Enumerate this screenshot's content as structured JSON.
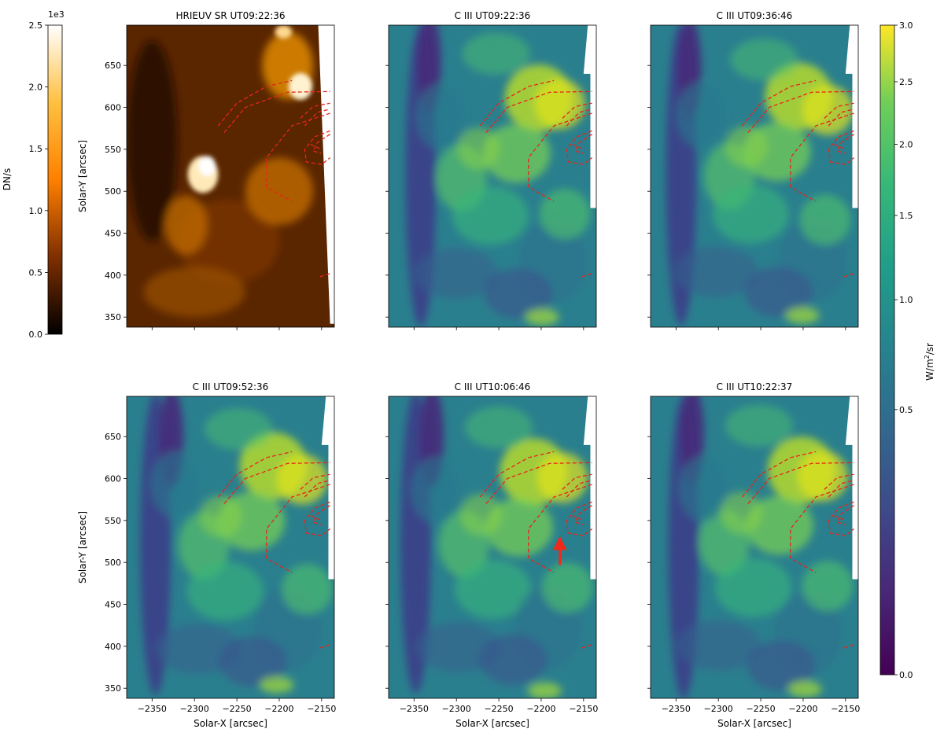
{
  "chart_data": {
    "type": "heatmap",
    "panels": [
      {
        "title": "HRIEUV SR UT09:22:36",
        "colormap": "afmhot",
        "ylabel": "Solar-Y [arcsec]",
        "xlabel": ""
      },
      {
        "title": "C III UT09:22:36",
        "colormap": "viridis",
        "ylabel": "",
        "xlabel": ""
      },
      {
        "title": "C III UT09:36:46",
        "colormap": "viridis",
        "ylabel": "",
        "xlabel": ""
      },
      {
        "title": "C III UT09:52:36",
        "colormap": "viridis",
        "ylabel": "Solar-Y [arcsec]",
        "xlabel": "Solar-X [arcsec]"
      },
      {
        "title": "C III UT10:06:46",
        "colormap": "viridis",
        "ylabel": "",
        "xlabel": "Solar-X [arcsec]",
        "annotation": "red arrow"
      },
      {
        "title": "C III UT10:22:37",
        "colormap": "viridis",
        "ylabel": "",
        "xlabel": "Solar-X [arcsec]"
      }
    ],
    "xlim": [
      -2380,
      -2135
    ],
    "ylim": [
      338,
      698
    ],
    "x_ticks": [
      -2350,
      -2300,
      -2250,
      -2200,
      -2150
    ],
    "x_tick_labels": [
      "−2350",
      "−2300",
      "−2250",
      "−2200",
      "−2150"
    ],
    "y_ticks": [
      350,
      400,
      450,
      500,
      550,
      600,
      650
    ],
    "y_tick_labels": [
      "350",
      "400",
      "450",
      "500",
      "550",
      "600",
      "650"
    ],
    "colorbar_left": {
      "label": "DN/s",
      "offset_text": "1e3",
      "range": [
        0,
        2.5
      ],
      "ticks": [
        0.0,
        0.5,
        1.0,
        1.5,
        2.0,
        2.5
      ],
      "tick_labels": [
        "0.0",
        "0.5",
        "1.0",
        "1.5",
        "2.0",
        "2.5"
      ]
    },
    "colorbar_right": {
      "label": "W/m²/sr",
      "label_main": "W/m",
      "label_sup": "2",
      "label_tail": "/sr",
      "range": [
        0,
        3.0
      ],
      "scale": "sqrt",
      "ticks": [
        0.0,
        0.5,
        1.0,
        1.5,
        2.0,
        2.5,
        3.0
      ],
      "tick_labels": [
        "0.0",
        "0.5",
        "1.0",
        "1.5",
        "2.0",
        "2.5",
        "3.0"
      ]
    },
    "overlay": "red dashed contours"
  }
}
